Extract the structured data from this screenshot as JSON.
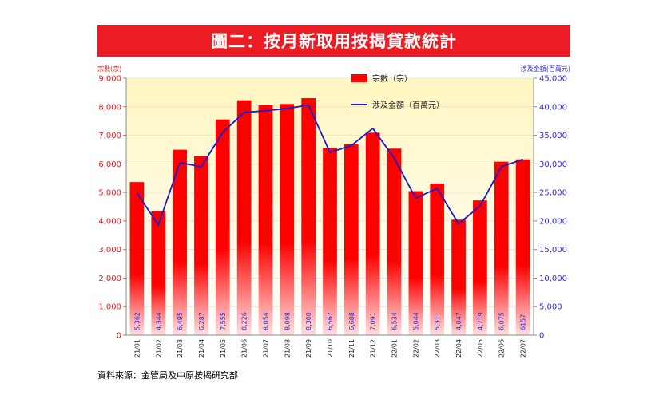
{
  "title": "圖二：按月新取用按揭貸款統計",
  "source": "資料來源：金管局及中原按揭研究部",
  "chart_data": {
    "type": "bar+line",
    "categories": [
      "21/01",
      "21/02",
      "21/03",
      "21/04",
      "21/05",
      "21/06",
      "21/07",
      "21/08",
      "21/09",
      "21/10",
      "21/11",
      "21/12",
      "22/01",
      "22/02",
      "22/03",
      "22/04",
      "22/05",
      "22/06",
      "22/07"
    ],
    "bar_labels": [
      "5,362",
      "4,344",
      "6,495",
      "6,287",
      "7,555",
      "8,226",
      "8,054",
      "8,098",
      "8,300",
      "6,567",
      "6,688",
      "7,091",
      "6,534",
      "5,044",
      "5,311",
      "4,047",
      "4,719",
      "6,075",
      "6157"
    ],
    "series": [
      {
        "name": "宗數（宗）",
        "type": "bar",
        "axis": "left",
        "values": [
          5362,
          4344,
          6495,
          6287,
          7555,
          8226,
          8054,
          8098,
          8300,
          6567,
          6688,
          7091,
          6534,
          5044,
          5311,
          4047,
          4719,
          6075,
          6157
        ]
      },
      {
        "name": "涉及金額（百萬元）",
        "type": "line",
        "axis": "right",
        "values": [
          24900,
          19300,
          30200,
          29500,
          35500,
          39000,
          39300,
          39700,
          40300,
          32000,
          33200,
          36200,
          31000,
          24000,
          25700,
          19500,
          22600,
          29500,
          30800
        ]
      }
    ],
    "y_left": {
      "label": "宗數(宗)",
      "range": [
        0,
        9000
      ],
      "ticks": [
        "0",
        "1,000",
        "2,000",
        "3,000",
        "4,000",
        "5,000",
        "6,000",
        "7,000",
        "8,000",
        "9,000"
      ]
    },
    "y_right": {
      "label": "涉及金額(百萬元)",
      "range": [
        0,
        45000
      ],
      "ticks": [
        "0",
        "5,000",
        "10,000",
        "15,000",
        "20,000",
        "25,000",
        "30,000",
        "35,000",
        "40,000",
        "45,000"
      ]
    },
    "colors": {
      "bar_top": "#ff0000",
      "bar_bottom": "#ffdcdc",
      "line": "#1a1acc",
      "left_axis_text": "#e02020",
      "right_axis_text": "#2a2ae0",
      "bg_top": "#fff8c8",
      "bg_bottom": "#ffffff"
    }
  }
}
